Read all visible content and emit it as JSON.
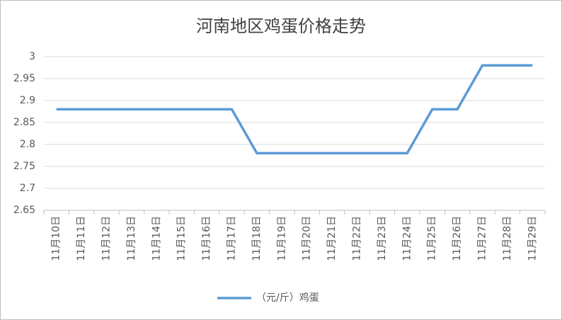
{
  "chart_data": {
    "type": "line",
    "title": "河南地区鸡蛋价格走势",
    "categories": [
      "11月10日",
      "11月11日",
      "11月12日",
      "11月13日",
      "11月14日",
      "11月15日",
      "11月16日",
      "11月17日",
      "11月18日",
      "11月19日",
      "11月20日",
      "11月21日",
      "11月22日",
      "11月23日",
      "11月24日",
      "11月25日",
      "11月26日",
      "11月27日",
      "11月28日",
      "11月29日"
    ],
    "series": [
      {
        "name": "（元/斤）鸡蛋",
        "color": "#5b9bd5",
        "values": [
          2.88,
          2.88,
          2.88,
          2.88,
          2.88,
          2.88,
          2.88,
          2.88,
          2.78,
          2.78,
          2.78,
          2.78,
          2.78,
          2.78,
          2.78,
          2.88,
          2.88,
          2.98,
          2.98,
          2.98
        ]
      }
    ],
    "ylim": [
      2.65,
      3
    ],
    "yticks": [
      2.65,
      2.7,
      2.75,
      2.8,
      2.85,
      2.9,
      2.95,
      3
    ],
    "grid": true,
    "legend": "bottom"
  }
}
